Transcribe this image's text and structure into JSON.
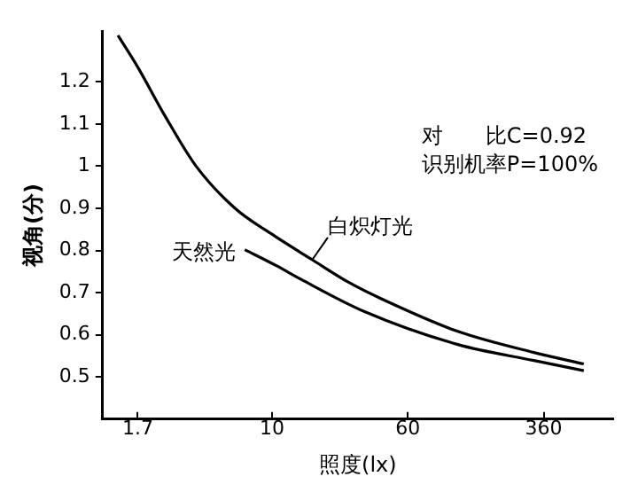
{
  "chart_data": {
    "type": "line",
    "xlabel": "照度(lx)",
    "ylabel": "视角(分)",
    "log": "x",
    "xlim": [
      1.07,
      900
    ],
    "xticks": [
      1.7,
      10,
      60,
      360
    ],
    "ylim": [
      0.4,
      1.32
    ],
    "yticks": [
      0.5,
      0.6,
      0.7,
      0.8,
      0.9,
      1.0,
      1.1,
      1.2
    ],
    "grid": false,
    "legend": false,
    "marker": "none",
    "line_style": "solid",
    "annotations": [
      "对　　比C=0.92",
      "识别机率P=100%"
    ],
    "series": [
      {
        "name": "白炽灯光",
        "color": "#000000",
        "x": [
          1.31,
          1.7,
          2.43,
          3.67,
          6.14,
          10.2,
          17,
          27.6,
          42,
          116,
          316,
          611
        ],
        "values": [
          1.31,
          1.235,
          1.12,
          1.0,
          0.9,
          0.836,
          0.778,
          0.724,
          0.686,
          0.608,
          0.558,
          0.531
        ]
      },
      {
        "name": "天然光",
        "color": "#000000",
        "x": [
          6.98,
          10.7,
          14.6,
          33.9,
          116,
          316,
          611
        ],
        "values": [
          0.802,
          0.763,
          0.732,
          0.655,
          0.577,
          0.539,
          0.515
        ]
      }
    ]
  }
}
